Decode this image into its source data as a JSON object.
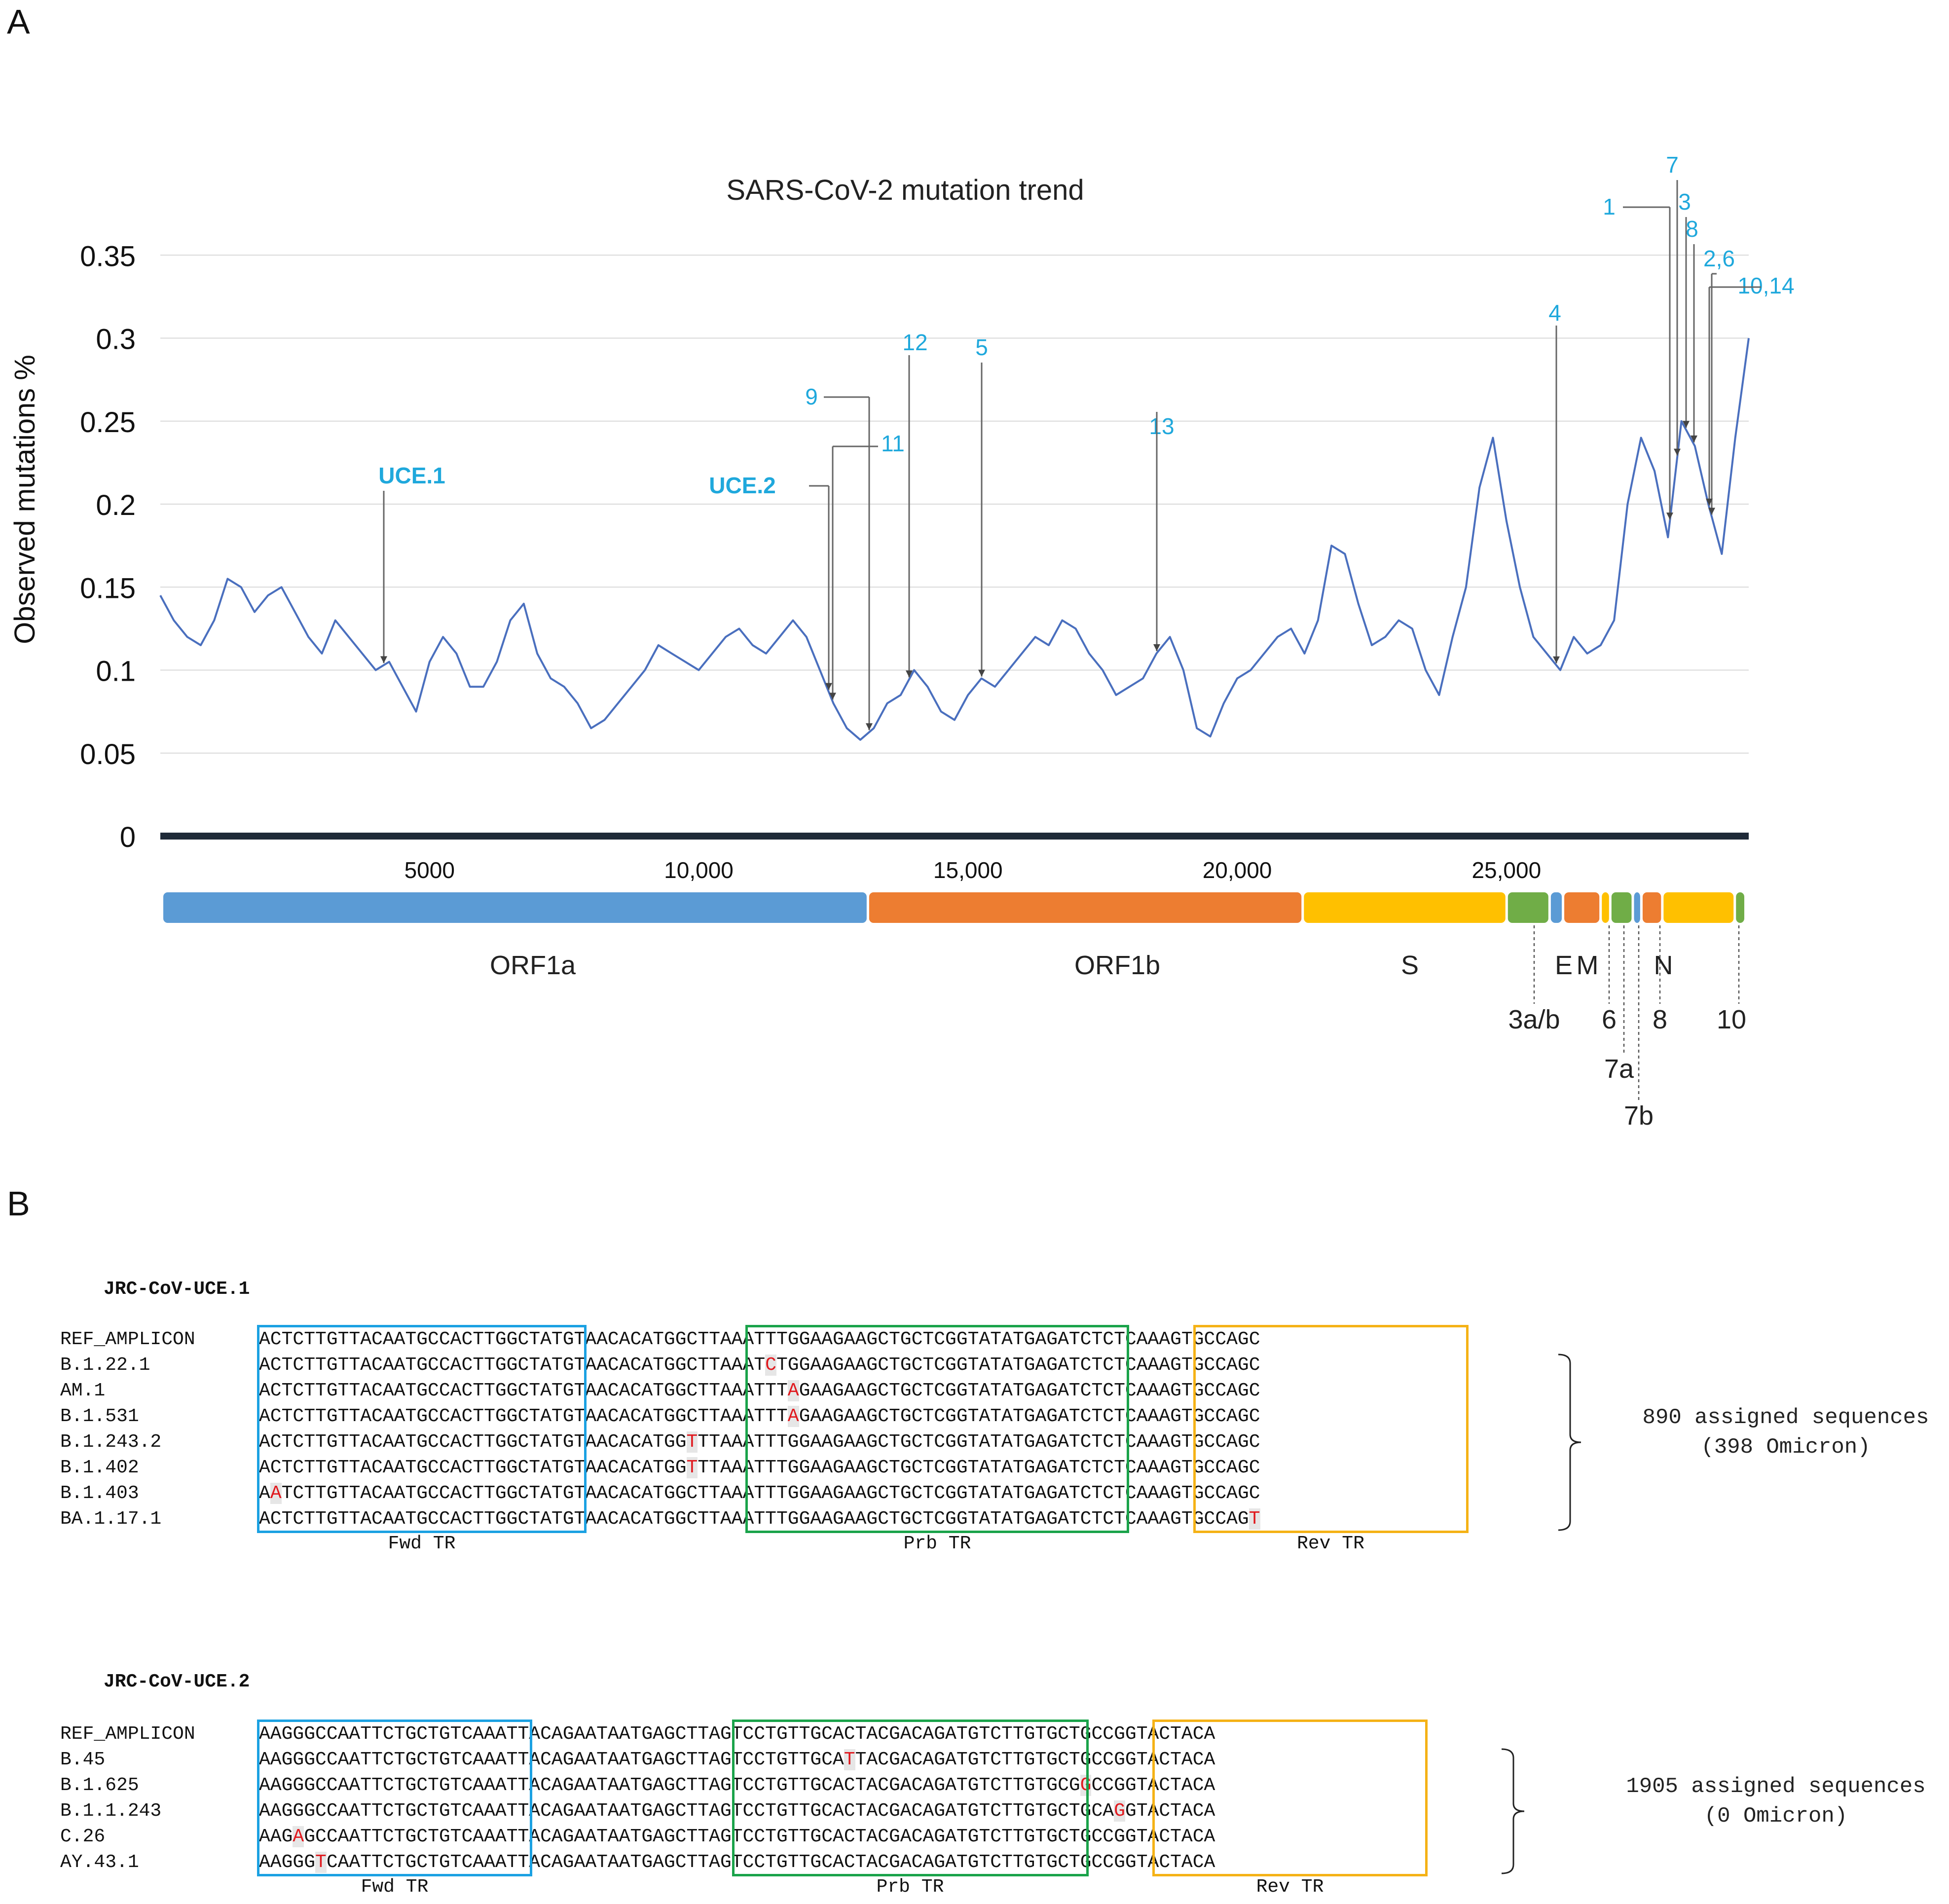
{
  "panel_labels": {
    "a": "A",
    "b": "B"
  },
  "chart_data": {
    "type": "line",
    "title": "SARS-CoV-2 mutation trend",
    "xlabel": "",
    "ylabel": "Observed mutations %",
    "xlim": [
      0,
      29500
    ],
    "ylim": [
      0,
      0.37
    ],
    "x_tick_labels": [
      "5000",
      "10,000",
      "15,000",
      "20,000",
      "25,000"
    ],
    "x_tick_values": [
      5000,
      10000,
      15000,
      20000,
      25000
    ],
    "y_tick_labels": [
      "0",
      "0.05",
      "0.1",
      "0.15",
      "0.2",
      "0.25",
      "0.3",
      "0.35"
    ],
    "y_tick_values": [
      0,
      0.05,
      0.1,
      0.15,
      0.2,
      0.25,
      0.3,
      0.35
    ],
    "grid": true,
    "series": [
      {
        "name": "Observed mutations %",
        "color": "#4a6fbe",
        "x": [
          0,
          250,
          500,
          750,
          1000,
          1250,
          1500,
          1750,
          2000,
          2250,
          2500,
          2750,
          3000,
          3250,
          3500,
          3750,
          4000,
          4250,
          4500,
          4750,
          5000,
          5250,
          5500,
          5750,
          6000,
          6250,
          6500,
          6750,
          7000,
          7250,
          7500,
          7750,
          8000,
          8250,
          8500,
          8750,
          9000,
          9250,
          9500,
          9750,
          10000,
          10250,
          10500,
          10750,
          11000,
          11250,
          11500,
          11750,
          12000,
          12250,
          12500,
          12750,
          13000,
          13250,
          13500,
          13750,
          14000,
          14250,
          14500,
          14750,
          15000,
          15250,
          15500,
          15750,
          16000,
          16250,
          16500,
          16750,
          17000,
          17250,
          17500,
          17750,
          18000,
          18250,
          18500,
          18750,
          19000,
          19250,
          19500,
          19750,
          20000,
          20250,
          20500,
          20750,
          21000,
          21250,
          21500,
          21750,
          22000,
          22250,
          22500,
          22750,
          23000,
          23250,
          23500,
          23750,
          24000,
          24250,
          24500,
          24750,
          25000,
          25250,
          25500,
          25750,
          26000,
          26250,
          26500,
          26750,
          27000,
          27250,
          27500,
          27750,
          28000,
          28250,
          28500,
          28750,
          29000,
          29250,
          29500
        ],
        "values": [
          0.145,
          0.13,
          0.12,
          0.115,
          0.13,
          0.155,
          0.15,
          0.135,
          0.145,
          0.15,
          0.135,
          0.12,
          0.11,
          0.13,
          0.12,
          0.11,
          0.1,
          0.105,
          0.09,
          0.075,
          0.105,
          0.12,
          0.11,
          0.09,
          0.09,
          0.105,
          0.13,
          0.14,
          0.11,
          0.095,
          0.09,
          0.08,
          0.065,
          0.07,
          0.08,
          0.09,
          0.1,
          0.115,
          0.11,
          0.105,
          0.1,
          0.11,
          0.12,
          0.125,
          0.115,
          0.11,
          0.12,
          0.13,
          0.12,
          0.1,
          0.08,
          0.065,
          0.058,
          0.065,
          0.08,
          0.085,
          0.1,
          0.09,
          0.075,
          0.07,
          0.085,
          0.095,
          0.09,
          0.1,
          0.11,
          0.12,
          0.115,
          0.13,
          0.125,
          0.11,
          0.1,
          0.085,
          0.09,
          0.095,
          0.11,
          0.12,
          0.1,
          0.065,
          0.06,
          0.08,
          0.095,
          0.1,
          0.11,
          0.12,
          0.125,
          0.11,
          0.13,
          0.175,
          0.17,
          0.14,
          0.115,
          0.12,
          0.13,
          0.125,
          0.1,
          0.085,
          0.12,
          0.15,
          0.21,
          0.24,
          0.19,
          0.15,
          0.12,
          0.11,
          0.1,
          0.12,
          0.11,
          0.115,
          0.13,
          0.2,
          0.24,
          0.22,
          0.18,
          0.25,
          0.235,
          0.2,
          0.17,
          0.24,
          0.3
        ]
      }
    ],
    "annotations": [
      {
        "text": "UCE.1",
        "x": 4100,
        "bold": true
      },
      {
        "text": "UCE.2",
        "x": 12300,
        "bold": true
      },
      {
        "text": "9",
        "x": 13200
      },
      {
        "text": "11",
        "x": 13500
      },
      {
        "text": "12",
        "x": 13950
      },
      {
        "text": "5",
        "x": 15200
      },
      {
        "text": "13",
        "x": 18400
      },
      {
        "text": "4",
        "x": 26000
      },
      {
        "text": "1",
        "x": 28150
      },
      {
        "text": "7",
        "x": 28350
      },
      {
        "text": "3",
        "x": 28550
      },
      {
        "text": "8",
        "x": 28700
      },
      {
        "text": "2,6",
        "x": 28950
      },
      {
        "text": "10,14",
        "x": 29050
      }
    ],
    "annotation_color": "#1fa8dc",
    "genome_map": [
      {
        "name": "ORF1a",
        "start": 0,
        "end": 13150,
        "color": "#5b9bd5",
        "label": "ORF1a"
      },
      {
        "name": "ORF1b",
        "start": 13150,
        "end": 21250,
        "color": "#ed7d31",
        "label": "ORF1b"
      },
      {
        "name": "S",
        "start": 21250,
        "end": 25050,
        "color": "#ffc000",
        "label": "S"
      },
      {
        "name": "3a/b",
        "start": 25050,
        "end": 25850,
        "color": "#70ad47",
        "label": "3a/b"
      },
      {
        "name": "E",
        "start": 25850,
        "end": 26100,
        "color": "#5b9bd5",
        "label": "E"
      },
      {
        "name": "M",
        "start": 26100,
        "end": 26800,
        "color": "#ed7d31",
        "label": "M"
      },
      {
        "name": "6",
        "start": 26800,
        "end": 26980,
        "color": "#ffc000",
        "label": "6"
      },
      {
        "name": "7a",
        "start": 26980,
        "end": 27400,
        "color": "#70ad47",
        "label": "7a"
      },
      {
        "name": "7b",
        "start": 27400,
        "end": 27560,
        "color": "#5b9bd5",
        "label": "7b"
      },
      {
        "name": "8",
        "start": 27560,
        "end": 27950,
        "color": "#ed7d31",
        "label": "8"
      },
      {
        "name": "N",
        "start": 27950,
        "end": 29300,
        "color": "#ffc000",
        "label": "N"
      },
      {
        "name": "10",
        "start": 29300,
        "end": 29500,
        "color": "#70ad47",
        "label": "10"
      }
    ]
  },
  "alignments": [
    {
      "title": "JRC-CoV-UCE.1",
      "rows": [
        {
          "name": "REF_AMPLICON",
          "seq": "ACTCTTGTTACAATGCCACTTGGCTATGTAACACATGGCTTAAATTTGGAAGAAGCTGCTCGGTATATGAGATCTCTCAAAGTGCCAGC",
          "mut": -1
        },
        {
          "name": "B.1.22.1",
          "seq": "ACTCTTGTTACAATGCCACTTGGCTATGTAACACATGGCTTAAATCTGGAAGAAGCTGCTCGGTATATGAGATCTCTCAAAGTGCCAGC",
          "mut": 45
        },
        {
          "name": "AM.1",
          "seq": "ACTCTTGTTACAATGCCACTTGGCTATGTAACACATGGCTTAAATTTAGAAGAAGCTGCTCGGTATATGAGATCTCTCAAAGTGCCAGC",
          "mut": 47
        },
        {
          "name": "B.1.531",
          "seq": "ACTCTTGTTACAATGCCACTTGGCTATGTAACACATGGCTTAAATTTAGAAGAAGCTGCTCGGTATATGAGATCTCTCAAAGTGCCAGC",
          "mut": 47
        },
        {
          "name": "B.1.243.2",
          "seq": "ACTCTTGTTACAATGCCACTTGGCTATGTAACACATGGTTTAAATTTGGAAGAAGCTGCTCGGTATATGAGATCTCTCAAAGTGCCAGC",
          "mut": 38
        },
        {
          "name": "B.1.402",
          "seq": "ACTCTTGTTACAATGCCACTTGGCTATGTAACACATGGTTTAAATTTGGAAGAAGCTGCTCGGTATATGAGATCTCTCAAAGTGCCAGC",
          "mut": 38
        },
        {
          "name": "B.1.403",
          "seq": "AATCTTGTTACAATGCCACTTGGCTATGTAACACATGGCTTAAATTTGGAAGAAGCTGCTCGGTATATGAGATCTCTCAAAGTGCCAGC",
          "mut": 1
        },
        {
          "name": "BA.1.17.1",
          "seq": "ACTCTTGTTACAATGCCACTTGGCTATGTAACACATGGCTTAAATTTGGAAGAAGCTGCTCGGTATATGAGATCTCTCAAAGTGCCAGT",
          "mut": 88
        }
      ],
      "regions": [
        {
          "label": "Fwd TR",
          "color": "#1ba1e2"
        },
        {
          "label": "Prb TR",
          "color": "#1aa34a"
        },
        {
          "label": "Rev TR",
          "color": "#f5b216"
        }
      ],
      "summary_line1": "890 assigned sequences",
      "summary_line2": "(398 Omicron)"
    },
    {
      "title": "JRC-CoV-UCE.2",
      "rows": [
        {
          "name": "REF_AMPLICON",
          "seq": "AAGGGCCAATTCTGCTGTCAAATTACAGAATAATGAGCTTAGTCCTGTTGCACTACGACAGATGTCTTGTGCTGCCGGTACTACA",
          "mut": -1
        },
        {
          "name": "B.45",
          "seq": "AAGGGCCAATTCTGCTGTCAAATTACAGAATAATGAGCTTAGTCCTGTTGCATTACGACAGATGTCTTGTGCTGCCGGTACTACA",
          "mut": 52
        },
        {
          "name": "B.1.625",
          "seq": "AAGGGCCAATTCTGCTGTCAAATTACAGAATAATGAGCTTAGTCCTGTTGCACTACGACAGATGTCTTGTGCGGCCGGTACTACA",
          "mut": 73
        },
        {
          "name": "B.1.1.243",
          "seq": "AAGGGCCAATTCTGCTGTCAAATTACAGAATAATGAGCTTAGTCCTGTTGCACTACGACAGATGTCTTGTGCTGCAGGTACTACA",
          "mut": 76
        },
        {
          "name": "C.26",
          "seq": "AAGAGCCAATTCTGCTGTCAAATTACAGAATAATGAGCTTAGTCCTGTTGCACTACGACAGATGTCTTGTGCTGCCGGTACTACA",
          "mut": 3
        },
        {
          "name": "AY.43.1",
          "seq": "AAGGGTCAATTCTGCTGTCAAATTACAGAATAATGAGCTTAGTCCTGTTGCACTACGACAGATGTCTTGTGCTGCCGGTACTACA",
          "mut": 5
        }
      ],
      "regions": [
        {
          "label": "Fwd TR",
          "color": "#1ba1e2"
        },
        {
          "label": "Prb TR",
          "color": "#1aa34a"
        },
        {
          "label": "Rev TR",
          "color": "#f5b216"
        }
      ],
      "summary_line1": "1905 assigned sequences",
      "summary_line2": "(0 Omicron)"
    }
  ]
}
